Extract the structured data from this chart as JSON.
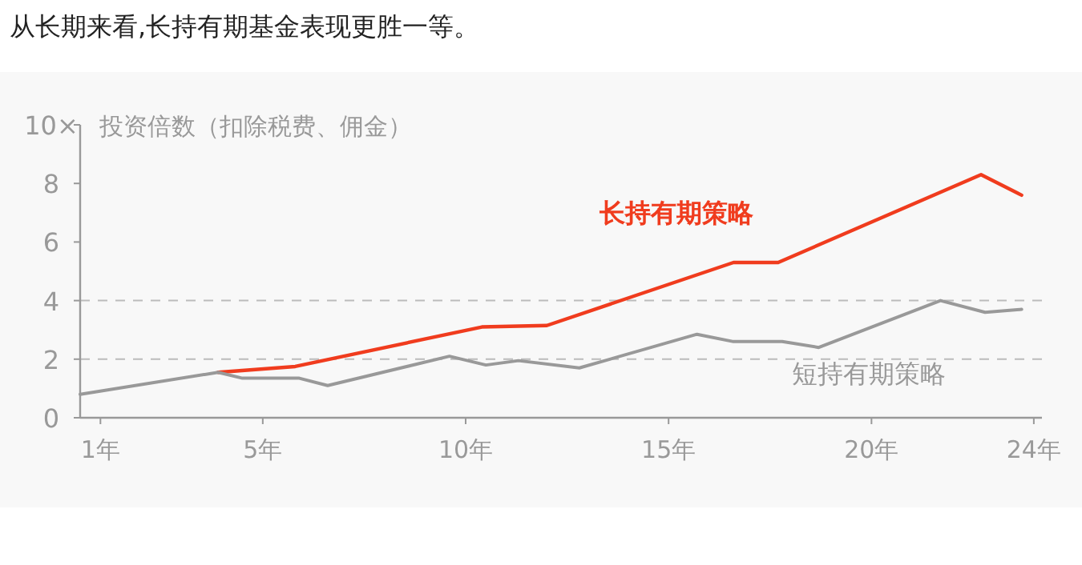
{
  "chart_data": {
    "type": "line",
    "title": "从长期来看,长持有期基金表现更胜一等。",
    "ylabel": "投资倍数（扣除税费、佣金）",
    "xlim": [
      0.5,
      24.2
    ],
    "ylim": [
      0,
      10
    ],
    "xticks": [
      {
        "value": 1,
        "label": "1年"
      },
      {
        "value": 5,
        "label": "5年"
      },
      {
        "value": 10,
        "label": "10年"
      },
      {
        "value": 15,
        "label": "15年"
      },
      {
        "value": 20,
        "label": "20年"
      },
      {
        "value": 24,
        "label": "24年"
      }
    ],
    "yticks": [
      0,
      2,
      4,
      6,
      8,
      {
        "value": 10,
        "label": "10×"
      }
    ],
    "ref_lines": [
      {
        "axis": "y",
        "value": 2,
        "line_style": "dashed"
      },
      {
        "axis": "y",
        "value": 4,
        "line_style": "dashed"
      }
    ],
    "series": [
      {
        "name": "长持有期策略",
        "color": "#f03c1e",
        "x": [
          3.9,
          5.8,
          10.4,
          12.0,
          16.6,
          17.7,
          22.7,
          23.7
        ],
        "values": [
          1.55,
          1.75,
          3.1,
          3.15,
          5.3,
          5.3,
          8.3,
          7.6
        ]
      },
      {
        "name": "短持有期策略",
        "color": "#999999",
        "x": [
          0.5,
          3.9,
          4.5,
          5.9,
          6.6,
          9.6,
          10.5,
          11.3,
          12.8,
          15.7,
          16.6,
          17.8,
          18.7,
          21.7,
          22.8,
          23.7
        ],
        "values": [
          0.8,
          1.55,
          1.35,
          1.35,
          1.1,
          2.1,
          1.8,
          1.95,
          1.7,
          2.85,
          2.6,
          2.6,
          2.4,
          4.0,
          3.6,
          3.7
        ]
      }
    ]
  }
}
